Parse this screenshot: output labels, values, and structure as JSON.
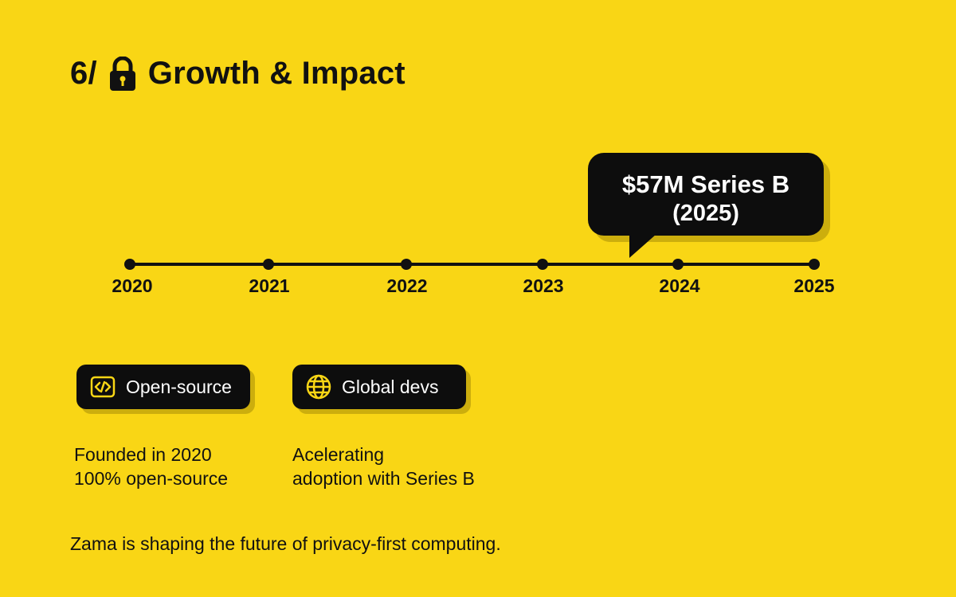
{
  "header": {
    "prefix": "6/",
    "lock_icon": "lock-icon",
    "title": "Growth & Impact"
  },
  "timeline": {
    "years": [
      "2020",
      "2021",
      "2022",
      "2023",
      "2024",
      "2025"
    ]
  },
  "callout": {
    "line1": "$57M Series B",
    "line2": "(2025)"
  },
  "badges": [
    {
      "icon": "code-icon",
      "label": "Open-source"
    },
    {
      "icon": "globe-icon",
      "label": "Global devs"
    }
  ],
  "notes": [
    {
      "line1": "Founded in 2020",
      "line2": "100% open-source"
    },
    {
      "line1": "Acelerating",
      "line2": "adoption with Series B"
    }
  ],
  "footer": {
    "text": "Zama is shaping the future of privacy-first computing."
  },
  "colors": {
    "background": "#F9D615",
    "dark": "#0d0d0d",
    "accent": "#F9D615"
  }
}
